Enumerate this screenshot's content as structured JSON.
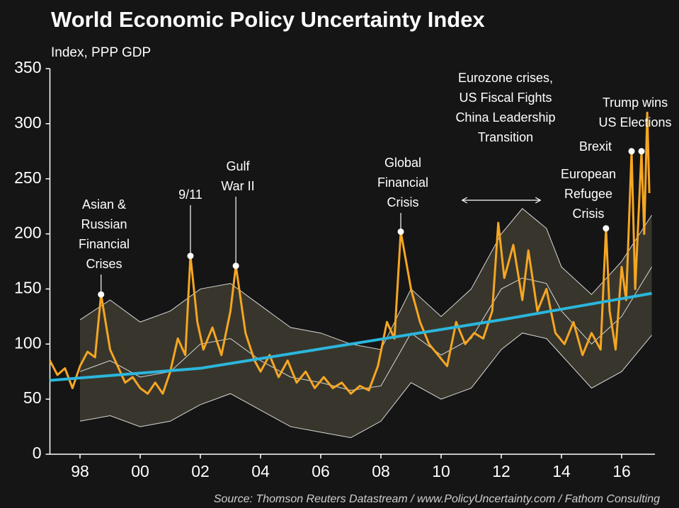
{
  "chart_data": {
    "type": "line",
    "title": "World Economic Policy Uncertainty Index",
    "subtitle": "Index, PPP GDP",
    "source": "Source: Thomson Reuters Datastream / www.PolicyUncertainty.com / Fathom Consulting",
    "xlim": [
      1997,
      2017.05
    ],
    "ylim": [
      0,
      350
    ],
    "yticks": [
      0,
      50,
      100,
      150,
      200,
      250,
      300,
      350
    ],
    "xticks": [
      {
        "value": 1998,
        "label": "98"
      },
      {
        "value": 2000,
        "label": "00"
      },
      {
        "value": 2002,
        "label": "02"
      },
      {
        "value": 2004,
        "label": "04"
      },
      {
        "value": 2006,
        "label": "06"
      },
      {
        "value": 2008,
        "label": "08"
      },
      {
        "value": 2010,
        "label": "10"
      },
      {
        "value": 2012,
        "label": "12"
      },
      {
        "value": 2014,
        "label": "14"
      },
      {
        "value": 2016,
        "label": "16"
      }
    ],
    "band": {
      "fill": "#38362c",
      "line_color": "#d8d8d8",
      "x": [
        1998,
        1999,
        2000,
        2001,
        2002,
        2003,
        2004,
        2005,
        2006,
        2007,
        2008,
        2009,
        2010,
        2011,
        2012,
        2012.7,
        2013.5,
        2014,
        2015,
        2016,
        2017
      ],
      "upper": [
        122,
        140,
        120,
        130,
        150,
        155,
        135,
        115,
        110,
        100,
        95,
        150,
        125,
        150,
        200,
        223,
        205,
        170,
        145,
        175,
        217
      ],
      "middle": [
        75,
        85,
        70,
        75,
        100,
        105,
        85,
        70,
        65,
        58,
        62,
        110,
        90,
        105,
        150,
        160,
        155,
        130,
        100,
        125,
        170
      ],
      "lower": [
        30,
        35,
        25,
        30,
        45,
        55,
        40,
        25,
        20,
        15,
        30,
        65,
        50,
        60,
        95,
        110,
        105,
        90,
        60,
        75,
        108
      ]
    },
    "series": [
      {
        "color": "#f5a623",
        "width": 3,
        "x": [
          1997.0,
          1997.25,
          1997.5,
          1997.75,
          1998.0,
          1998.25,
          1998.5,
          1998.7,
          1999.0,
          1999.25,
          1999.5,
          1999.75,
          2000.0,
          2000.25,
          2000.5,
          2000.75,
          2001.0,
          2001.25,
          2001.5,
          2001.67,
          2001.9,
          2002.1,
          2002.4,
          2002.7,
          2003.0,
          2003.18,
          2003.5,
          2003.8,
          2004.0,
          2004.3,
          2004.6,
          2004.9,
          2005.2,
          2005.5,
          2005.8,
          2006.1,
          2006.4,
          2006.7,
          2007.0,
          2007.3,
          2007.6,
          2007.9,
          2008.2,
          2008.45,
          2008.66,
          2009.0,
          2009.3,
          2009.6,
          2009.9,
          2010.2,
          2010.5,
          2010.8,
          2011.1,
          2011.4,
          2011.7,
          2011.9,
          2012.1,
          2012.4,
          2012.7,
          2012.9,
          2013.2,
          2013.5,
          2013.8,
          2014.1,
          2014.4,
          2014.7,
          2015.0,
          2015.3,
          2015.48,
          2015.6,
          2015.8,
          2016.0,
          2016.15,
          2016.33,
          2016.45,
          2016.66,
          2016.75,
          2016.85,
          2016.92
        ],
        "values": [
          85,
          72,
          78,
          60,
          80,
          93,
          88,
          145,
          95,
          80,
          65,
          70,
          60,
          55,
          65,
          55,
          75,
          105,
          90,
          180,
          120,
          95,
          115,
          90,
          130,
          171,
          110,
          85,
          75,
          90,
          70,
          85,
          65,
          75,
          60,
          70,
          60,
          65,
          55,
          62,
          58,
          80,
          120,
          105,
          202,
          150,
          120,
          100,
          90,
          80,
          120,
          100,
          110,
          105,
          130,
          210,
          160,
          190,
          140,
          185,
          130,
          150,
          110,
          100,
          120,
          90,
          110,
          95,
          205,
          130,
          95,
          170,
          140,
          275,
          150,
          275,
          200,
          310,
          237
        ]
      },
      {
        "color": "#2bb6dc",
        "width": 4,
        "x": [
          1997,
          2002,
          2007,
          2012,
          2017
        ],
        "values": [
          67,
          78,
          100,
          122,
          146
        ]
      }
    ],
    "annotations": [
      {
        "lines": [
          "Asian &",
          "Russian",
          "Financial",
          "Crises"
        ],
        "x": 1998.7,
        "y": 145
      },
      {
        "lines": [
          "9/11"
        ],
        "x": 2001.67,
        "y": 180
      },
      {
        "lines": [
          "Gulf",
          "War II"
        ],
        "x": 2003.18,
        "y": 171
      },
      {
        "lines": [
          "Global",
          "Financial",
          "Crisis"
        ],
        "x": 2008.66,
        "y": 202
      },
      {
        "lines": [
          "Eurozone crises,",
          "US Fiscal Fights",
          "China Leadership",
          "Transition"
        ],
        "span": [
          2010.7,
          2013.3
        ]
      },
      {
        "lines": [
          "European",
          "Refugee",
          "Crisis"
        ],
        "x": 2015.48,
        "y": 205
      },
      {
        "lines": [
          "Brexit"
        ],
        "x": 2016.33,
        "y": 275
      },
      {
        "lines": [
          "Trump wins",
          "US Elections"
        ],
        "x": 2016.66,
        "y": 275
      }
    ]
  }
}
